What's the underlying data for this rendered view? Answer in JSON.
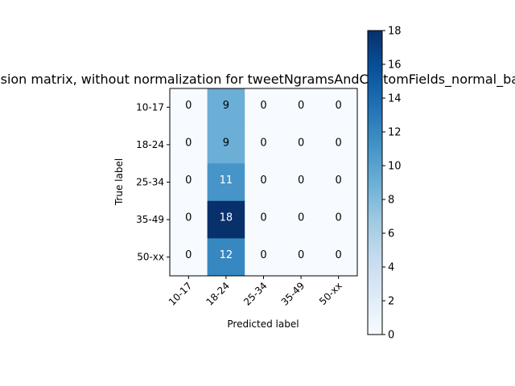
{
  "chart_data": {
    "type": "heatmap",
    "title": "Confusion matrix, without normalization for tweetNgramsAndCustomFields_normal_balanced",
    "xlabel": "Predicted label",
    "ylabel": "True label",
    "x_categories": [
      "10-17",
      "18-24",
      "25-34",
      "35-49",
      "50-xx"
    ],
    "y_categories": [
      "10-17",
      "18-24",
      "25-34",
      "35-49",
      "50-xx"
    ],
    "values": [
      [
        0,
        9,
        0,
        0,
        0
      ],
      [
        0,
        9,
        0,
        0,
        0
      ],
      [
        0,
        11,
        0,
        0,
        0
      ],
      [
        0,
        18,
        0,
        0,
        0
      ],
      [
        0,
        12,
        0,
        0,
        0
      ]
    ],
    "colormap": "Blues",
    "vmin": 0,
    "vmax": 18,
    "colorbar_ticks": [
      0,
      2,
      4,
      6,
      8,
      10,
      12,
      14,
      16,
      18
    ]
  }
}
